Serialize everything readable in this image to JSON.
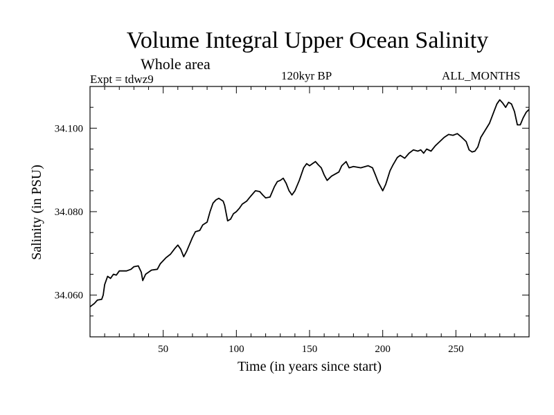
{
  "header": {
    "title": "Volume Integral Upper Ocean Salinity",
    "subtitle": "Whole area",
    "experiment": "Expt = tdwz9",
    "period": "120kyr BP",
    "months": "ALL_MONTHS"
  },
  "chart_data": {
    "type": "line",
    "title": "Volume Integral Upper Ocean Salinity",
    "xlabel": "Time (in years since start)",
    "ylabel": "Salinity (in PSU)",
    "xlim": [
      0,
      300
    ],
    "ylim": [
      34.05,
      34.11
    ],
    "xticks": [
      50,
      100,
      150,
      200,
      250
    ],
    "yticks": [
      34.06,
      34.08,
      34.1
    ],
    "ytick_labels": [
      "34.060",
      "34.080",
      "34.100"
    ],
    "grid": false,
    "series": [
      {
        "color": "#000000",
        "points": [
          [
            0,
            34.0572
          ],
          [
            3,
            34.058
          ],
          [
            5,
            34.0588
          ],
          [
            8,
            34.059
          ],
          [
            9,
            34.06
          ],
          [
            10,
            34.0625
          ],
          [
            12,
            34.0645
          ],
          [
            14,
            34.064
          ],
          [
            16,
            34.065
          ],
          [
            18,
            34.0648
          ],
          [
            20,
            34.0658
          ],
          [
            25,
            34.0658
          ],
          [
            28,
            34.0662
          ],
          [
            30,
            34.0668
          ],
          [
            33,
            34.067
          ],
          [
            35,
            34.0655
          ],
          [
            36,
            34.0635
          ],
          [
            38,
            34.065
          ],
          [
            42,
            34.066
          ],
          [
            46,
            34.0662
          ],
          [
            48,
            34.0675
          ],
          [
            52,
            34.069
          ],
          [
            55,
            34.0698
          ],
          [
            58,
            34.0712
          ],
          [
            60,
            34.072
          ],
          [
            62,
            34.071
          ],
          [
            64,
            34.0692
          ],
          [
            66,
            34.0705
          ],
          [
            70,
            34.0738
          ],
          [
            72,
            34.0752
          ],
          [
            75,
            34.0755
          ],
          [
            77,
            34.0768
          ],
          [
            80,
            34.0775
          ],
          [
            82,
            34.08
          ],
          [
            84,
            34.082
          ],
          [
            86,
            34.0828
          ],
          [
            88,
            34.0832
          ],
          [
            91,
            34.0825
          ],
          [
            92,
            34.0815
          ],
          [
            94,
            34.0778
          ],
          [
            96,
            34.0782
          ],
          [
            98,
            34.0795
          ],
          [
            100,
            34.08
          ],
          [
            102,
            34.0808
          ],
          [
            104,
            34.0818
          ],
          [
            107,
            34.0825
          ],
          [
            110,
            34.0838
          ],
          [
            113,
            34.085
          ],
          [
            116,
            34.0848
          ],
          [
            118,
            34.084
          ],
          [
            120,
            34.0833
          ],
          [
            123,
            34.0835
          ],
          [
            126,
            34.086
          ],
          [
            128,
            34.0872
          ],
          [
            130,
            34.0875
          ],
          [
            132,
            34.088
          ],
          [
            134,
            34.0868
          ],
          [
            136,
            34.085
          ],
          [
            138,
            34.084
          ],
          [
            140,
            34.085
          ],
          [
            143,
            34.0875
          ],
          [
            146,
            34.0905
          ],
          [
            148,
            34.0915
          ],
          [
            150,
            34.091
          ],
          [
            152,
            34.0915
          ],
          [
            154,
            34.092
          ],
          [
            156,
            34.0912
          ],
          [
            158,
            34.0905
          ],
          [
            160,
            34.0888
          ],
          [
            162,
            34.0875
          ],
          [
            165,
            34.0885
          ],
          [
            170,
            34.0895
          ],
          [
            172,
            34.091
          ],
          [
            175,
            34.092
          ],
          [
            177,
            34.0905
          ],
          [
            180,
            34.0908
          ],
          [
            185,
            34.0905
          ],
          [
            190,
            34.091
          ],
          [
            193,
            34.0905
          ],
          [
            195,
            34.0888
          ],
          [
            197,
            34.087
          ],
          [
            200,
            34.085
          ],
          [
            202,
            34.0865
          ],
          [
            205,
            34.0898
          ],
          [
            207,
            34.0912
          ],
          [
            210,
            34.093
          ],
          [
            212,
            34.0935
          ],
          [
            215,
            34.0928
          ],
          [
            218,
            34.094
          ],
          [
            221,
            34.0948
          ],
          [
            224,
            34.0945
          ],
          [
            226,
            34.0948
          ],
          [
            228,
            34.094
          ],
          [
            230,
            34.095
          ],
          [
            233,
            34.0945
          ],
          [
            236,
            34.0958
          ],
          [
            239,
            34.0968
          ],
          [
            242,
            34.0978
          ],
          [
            245,
            34.0985
          ],
          [
            248,
            34.0983
          ],
          [
            251,
            34.0987
          ],
          [
            254,
            34.0978
          ],
          [
            257,
            34.0968
          ],
          [
            259,
            34.0948
          ],
          [
            261,
            34.0943
          ],
          [
            263,
            34.0945
          ],
          [
            265,
            34.0955
          ],
          [
            267,
            34.0978
          ],
          [
            270,
            34.0995
          ],
          [
            273,
            34.1012
          ],
          [
            276,
            34.104
          ],
          [
            278,
            34.1058
          ],
          [
            280,
            34.1068
          ],
          [
            282,
            34.106
          ],
          [
            284,
            34.105
          ],
          [
            286,
            34.1062
          ],
          [
            288,
            34.1058
          ],
          [
            290,
            34.104
          ],
          [
            292,
            34.1008
          ],
          [
            294,
            34.1008
          ],
          [
            296,
            34.1025
          ],
          [
            298,
            34.1038
          ],
          [
            300,
            34.1045
          ]
        ]
      }
    ]
  }
}
